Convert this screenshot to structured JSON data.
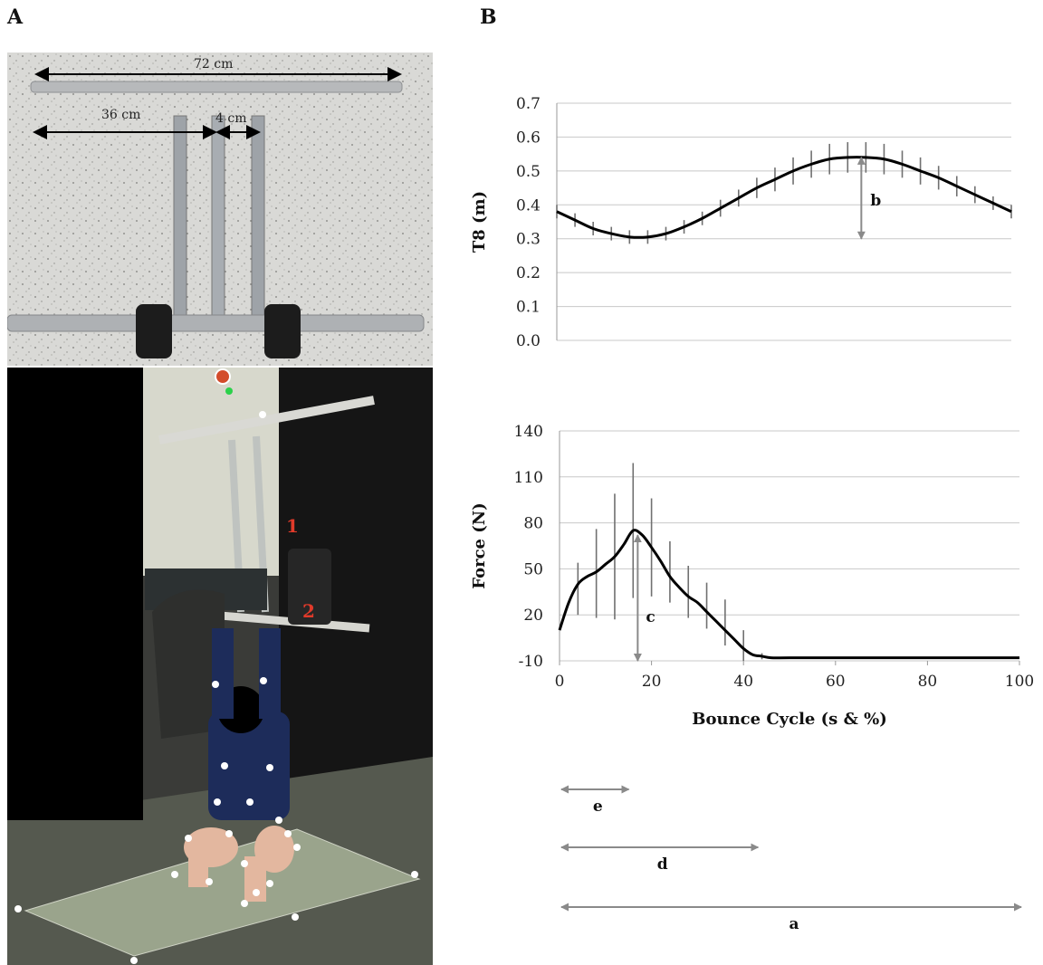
{
  "figure": {
    "panel_a_letter": "A",
    "panel_b_letter": "B"
  },
  "panel_a": {
    "dimension_labels": [
      "72 cm",
      "36 cm",
      "4 cm"
    ],
    "marker_labels": [
      "1",
      "2"
    ]
  },
  "chart_data": [
    {
      "type": "line",
      "id": "t8-position",
      "ylabel": "T8 (m)",
      "xlabel": "",
      "ylim": [
        0.0,
        0.7
      ],
      "xlim": [
        0,
        100
      ],
      "yticks": [
        "0.0",
        "0.1",
        "0.2",
        "0.3",
        "0.4",
        "0.5",
        "0.6",
        "0.7"
      ],
      "grid": true,
      "x": [
        0,
        4,
        8,
        12,
        16,
        20,
        24,
        28,
        32,
        36,
        40,
        44,
        48,
        52,
        56,
        60,
        64,
        68,
        72,
        76,
        80,
        84,
        88,
        92,
        96,
        100
      ],
      "y": [
        0.38,
        0.355,
        0.33,
        0.315,
        0.305,
        0.305,
        0.315,
        0.335,
        0.36,
        0.39,
        0.42,
        0.45,
        0.475,
        0.5,
        0.52,
        0.535,
        0.54,
        0.54,
        0.535,
        0.52,
        0.5,
        0.48,
        0.455,
        0.43,
        0.405,
        0.38
      ],
      "error": [
        0.02,
        0.02,
        0.02,
        0.02,
        0.02,
        0.02,
        0.02,
        0.02,
        0.02,
        0.025,
        0.025,
        0.03,
        0.035,
        0.04,
        0.04,
        0.045,
        0.045,
        0.045,
        0.045,
        0.04,
        0.04,
        0.035,
        0.03,
        0.025,
        0.02,
        0.02
      ],
      "annotation": {
        "label": "b",
        "x": 67,
        "y_from": 0.54,
        "y_to": 0.3
      }
    },
    {
      "type": "line",
      "id": "force",
      "ylabel": "Force (N)",
      "xlabel": "Bounce Cycle (s & %)",
      "ylim": [
        -10,
        140
      ],
      "xlim": [
        0,
        100
      ],
      "yticks": [
        "-10",
        "20",
        "50",
        "80",
        "110",
        "140"
      ],
      "xticks": [
        "0",
        "20",
        "40",
        "60",
        "80",
        "100"
      ],
      "grid": true,
      "x": [
        0,
        2,
        4,
        6,
        8,
        10,
        12,
        14,
        16,
        18,
        20,
        22,
        24,
        26,
        28,
        30,
        32,
        34,
        36,
        38,
        40,
        42,
        44,
        46,
        50,
        60,
        70,
        80,
        90,
        100
      ],
      "y": [
        10,
        28,
        40,
        45,
        48,
        53,
        58,
        66,
        75,
        72,
        64,
        55,
        45,
        38,
        32,
        28,
        22,
        16,
        10,
        4,
        -2,
        -6,
        -7,
        -8,
        -8,
        -8,
        -8,
        -8,
        -8,
        -8
      ],
      "error_points": [
        {
          "x": 4,
          "y": 37,
          "e": 17
        },
        {
          "x": 8,
          "y": 47,
          "e": 29
        },
        {
          "x": 12,
          "y": 58,
          "e": 41
        },
        {
          "x": 16,
          "y": 75,
          "e": 44
        },
        {
          "x": 20,
          "y": 64,
          "e": 32
        },
        {
          "x": 24,
          "y": 48,
          "e": 20
        },
        {
          "x": 28,
          "y": 35,
          "e": 17
        },
        {
          "x": 32,
          "y": 26,
          "e": 15
        },
        {
          "x": 36,
          "y": 15,
          "e": 15
        },
        {
          "x": 40,
          "y": 0,
          "e": 10
        },
        {
          "x": 44,
          "y": -7,
          "e": 2
        }
      ],
      "annotation": {
        "label": "c",
        "x": 17,
        "y_from": 72,
        "y_to": -10
      }
    }
  ],
  "phase_arrows": [
    {
      "label": "e",
      "from": 0,
      "to": 15
    },
    {
      "label": "d",
      "from": 0,
      "to": 43
    },
    {
      "label": "a",
      "from": 0,
      "to": 100
    }
  ],
  "colors": {
    "grid": "#c8c8c8",
    "line": "#000000",
    "error_bar": "#707070",
    "annotation_arrow": "#8a8a8a"
  }
}
